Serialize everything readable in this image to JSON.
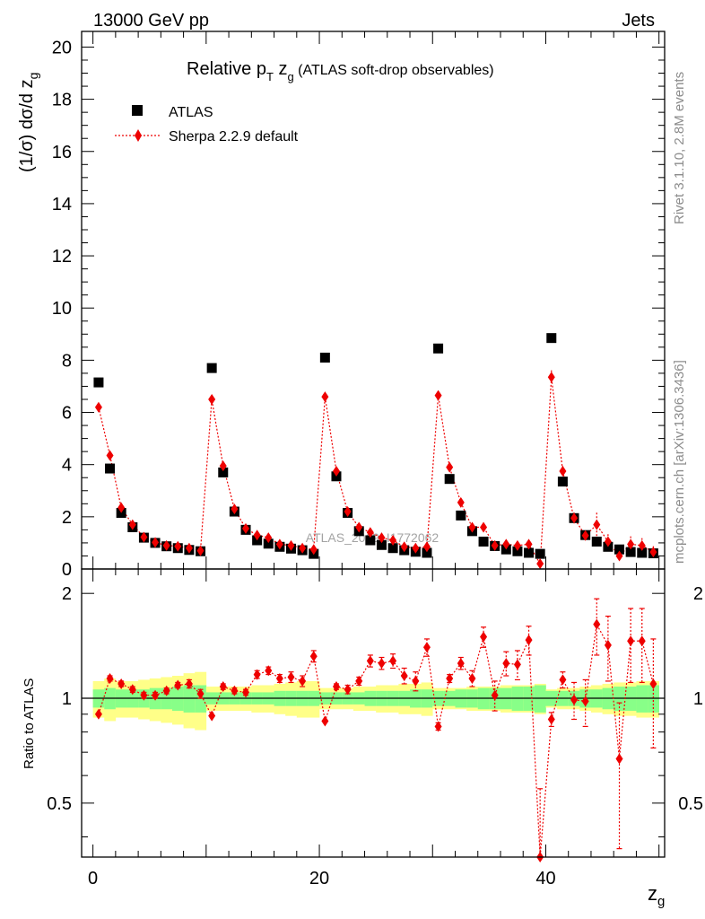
{
  "header": {
    "left": "13000 GeV pp",
    "right": "Jets"
  },
  "side": {
    "rivet": "Rivet 3.1.10,  2.8M events",
    "mcplots": "mcplots.cern.ch [arXiv:1306.3436]"
  },
  "watermark": "ATLAS_2019_I1772062",
  "colors": {
    "data": "#000000",
    "mc": "#ee0000",
    "band_inner": "#88ff88",
    "band_outer": "#ffff88"
  },
  "chart_data": [
    {
      "type": "scatter",
      "panel": "main",
      "title": "Relative p_T z_g (ATLAS soft-drop observables)",
      "title_parts": {
        "main": "Relative p",
        "sub1": "T",
        "mid": " z",
        "sub2": "g",
        "small": " (ATLAS soft-drop observables)"
      },
      "ylabel": "(1/σ) dσ/d z_g",
      "ylabel_parts": {
        "main": "(1/σ) dσ/d z",
        "sub": "g"
      },
      "xlim": [
        -1,
        50.5
      ],
      "ylim": [
        0,
        20.6
      ],
      "yticks": [
        0,
        2,
        4,
        6,
        8,
        10,
        12,
        14,
        16,
        18,
        20
      ],
      "yticklabels": [
        "0",
        "2",
        "4",
        "6",
        "8",
        "10",
        "12",
        "14",
        "16",
        "18",
        "20"
      ],
      "legend": {
        "position": "top-left",
        "entries": [
          "ATLAS",
          "Sherpa 2.2.9 default"
        ]
      },
      "x": [
        0.5,
        1.5,
        2.5,
        3.5,
        4.5,
        5.5,
        6.5,
        7.5,
        8.5,
        9.5,
        10.5,
        11.5,
        12.5,
        13.5,
        14.5,
        15.5,
        16.5,
        17.5,
        18.5,
        19.5,
        20.5,
        21.5,
        22.5,
        23.5,
        24.5,
        25.5,
        26.5,
        27.5,
        28.5,
        29.5,
        30.5,
        31.5,
        32.5,
        33.5,
        34.5,
        35.5,
        36.5,
        37.5,
        38.5,
        39.5,
        40.5,
        41.5,
        42.5,
        43.5,
        44.5,
        45.5,
        46.5,
        47.5,
        48.5,
        49.5
      ],
      "series": [
        {
          "name": "ATLAS",
          "marker": "square",
          "values": [
            7.15,
            3.85,
            2.15,
            1.6,
            1.2,
            1.0,
            0.87,
            0.8,
            0.73,
            0.68,
            7.7,
            3.7,
            2.2,
            1.5,
            1.1,
            0.97,
            0.85,
            0.78,
            0.72,
            0.58,
            8.1,
            3.55,
            2.15,
            1.45,
            1.1,
            0.92,
            0.8,
            0.72,
            0.66,
            0.62,
            8.45,
            3.45,
            2.05,
            1.45,
            1.05,
            0.88,
            0.75,
            0.68,
            0.62,
            0.58,
            8.85,
            3.35,
            1.95,
            1.3,
            1.05,
            0.85,
            0.75,
            0.65,
            0.62,
            0.6
          ]
        },
        {
          "name": "Sherpa 2.2.9 default",
          "marker": "diamond",
          "values": [
            6.2,
            4.35,
            2.35,
            1.7,
            1.22,
            1.02,
            0.9,
            0.87,
            0.8,
            0.7,
            6.5,
            3.95,
            2.3,
            1.55,
            1.3,
            1.2,
            0.95,
            0.9,
            0.8,
            0.75,
            6.6,
            3.75,
            2.2,
            1.6,
            1.4,
            1.2,
            1.1,
            0.85,
            0.8,
            0.85,
            6.65,
            3.9,
            2.55,
            1.6,
            1.6,
            0.9,
            0.95,
            0.9,
            0.95,
            0.2,
            7.35,
            3.75,
            1.95,
            1.28,
            1.7,
            1.05,
            0.5,
            0.95,
            0.9,
            0.65
          ]
        }
      ]
    },
    {
      "type": "scatter",
      "panel": "ratio",
      "ylabel": "Ratio to ATLAS",
      "xlabel": "z_g",
      "xlabel_parts": {
        "main": "z",
        "sub": "g"
      },
      "xlim": [
        -1,
        50.5
      ],
      "ylim": [
        0.35,
        2.35
      ],
      "yticks": [
        0.5,
        1,
        2
      ],
      "yticklabels": [
        "0.5",
        "1",
        "2"
      ],
      "xticks": [
        0,
        20,
        40
      ],
      "xticklabels": [
        "0",
        "20",
        "40"
      ],
      "x": [
        0.5,
        1.5,
        2.5,
        3.5,
        4.5,
        5.5,
        6.5,
        7.5,
        8.5,
        9.5,
        10.5,
        11.5,
        12.5,
        13.5,
        14.5,
        15.5,
        16.5,
        17.5,
        18.5,
        19.5,
        20.5,
        21.5,
        22.5,
        23.5,
        24.5,
        25.5,
        26.5,
        27.5,
        28.5,
        29.5,
        30.5,
        31.5,
        32.5,
        33.5,
        34.5,
        35.5,
        36.5,
        37.5,
        38.5,
        39.5,
        40.5,
        41.5,
        42.5,
        43.5,
        44.5,
        45.5,
        46.5,
        47.5,
        48.5,
        49.5
      ],
      "series": [
        {
          "name": "Sherpa 2.2.9 default",
          "values": [
            0.9,
            1.14,
            1.1,
            1.06,
            1.02,
            1.02,
            1.05,
            1.09,
            1.1,
            1.03,
            0.89,
            1.08,
            1.05,
            1.04,
            1.17,
            1.2,
            1.14,
            1.15,
            1.12,
            1.32,
            0.86,
            1.08,
            1.06,
            1.12,
            1.28,
            1.26,
            1.28,
            1.16,
            1.12,
            1.4,
            0.83,
            1.14,
            1.26,
            1.14,
            1.5,
            1.02,
            1.26,
            1.25,
            1.47,
            0.35,
            0.87,
            1.13,
            0.99,
            0.98,
            1.63,
            1.42,
            0.67,
            1.46,
            1.46,
            1.1
          ],
          "err": [
            0.01,
            0.02,
            0.02,
            0.02,
            0.02,
            0.02,
            0.02,
            0.02,
            0.03,
            0.03,
            0.01,
            0.02,
            0.02,
            0.02,
            0.03,
            0.03,
            0.03,
            0.04,
            0.04,
            0.05,
            0.01,
            0.02,
            0.03,
            0.03,
            0.05,
            0.05,
            0.06,
            0.06,
            0.07,
            0.08,
            0.02,
            0.03,
            0.05,
            0.06,
            0.1,
            0.1,
            0.1,
            0.12,
            0.14,
            0.2,
            0.04,
            0.06,
            0.12,
            0.15,
            0.3,
            0.3,
            0.3,
            0.35,
            0.35,
            0.38
          ]
        }
      ],
      "band": {
        "inner": [
          0.06,
          0.07,
          0.06,
          0.06,
          0.06,
          0.07,
          0.07,
          0.08,
          0.09,
          0.09,
          0.04,
          0.04,
          0.04,
          0.04,
          0.04,
          0.04,
          0.05,
          0.05,
          0.05,
          0.05,
          0.04,
          0.04,
          0.04,
          0.04,
          0.05,
          0.05,
          0.05,
          0.05,
          0.06,
          0.06,
          0.05,
          0.05,
          0.06,
          0.06,
          0.07,
          0.07,
          0.07,
          0.08,
          0.08,
          0.09,
          0.05,
          0.05,
          0.05,
          0.06,
          0.06,
          0.07,
          0.08,
          0.08,
          0.09,
          0.09
        ],
        "outer": [
          0.12,
          0.14,
          0.12,
          0.12,
          0.13,
          0.14,
          0.15,
          0.16,
          0.18,
          0.19,
          0.08,
          0.08,
          0.08,
          0.08,
          0.09,
          0.09,
          0.1,
          0.11,
          0.12,
          0.12,
          0.07,
          0.07,
          0.07,
          0.08,
          0.08,
          0.09,
          0.09,
          0.1,
          0.1,
          0.11,
          0.07,
          0.07,
          0.07,
          0.08,
          0.08,
          0.08,
          0.09,
          0.09,
          0.09,
          0.1,
          0.06,
          0.07,
          0.07,
          0.08,
          0.09,
          0.1,
          0.11,
          0.11,
          0.12,
          0.12
        ]
      }
    }
  ]
}
